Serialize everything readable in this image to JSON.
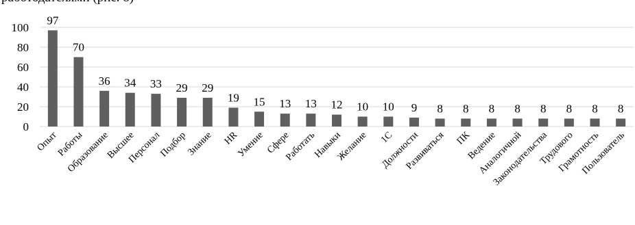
{
  "caption_fragment": "работодателями (рис. 8)",
  "chart_data": {
    "type": "bar",
    "title": "",
    "xlabel": "",
    "ylabel": "",
    "ylim": [
      0,
      100
    ],
    "y_ticks": [
      0,
      20,
      40,
      60,
      80,
      100
    ],
    "grid": true,
    "legend": "none",
    "bar_color": "#5f5f5f",
    "grid_color": "#d9d9d9",
    "categories": [
      "Опыт",
      "Работы",
      "Образование",
      "Высшее",
      "Персонал",
      "Подбор",
      "Знание",
      "HR",
      "Умение",
      "Сфере",
      "Работать",
      "Навыки",
      "Желание",
      "1С",
      "Должности",
      "Развиваться",
      "ПК",
      "Ведение",
      "Аналогичной",
      "Законодательства",
      "Трудового",
      "Грамотность",
      "Пользователь"
    ],
    "values": [
      97,
      70,
      36,
      34,
      33,
      29,
      29,
      19,
      15,
      13,
      13,
      12,
      10,
      10,
      9,
      8,
      8,
      8,
      8,
      8,
      8,
      8,
      8
    ]
  }
}
